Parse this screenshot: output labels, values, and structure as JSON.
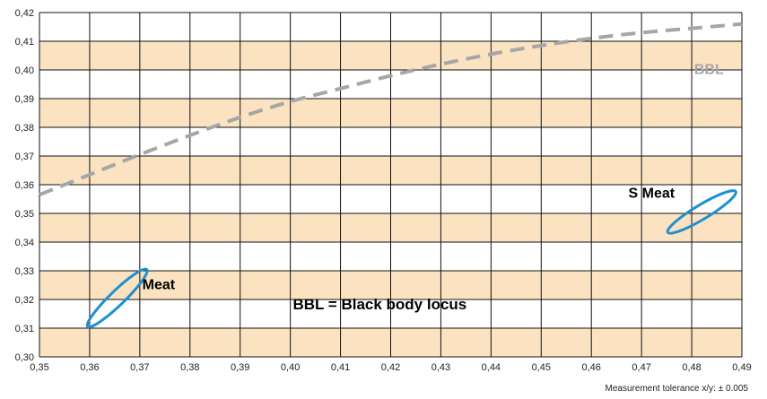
{
  "chart_data": {
    "type": "scatter",
    "xlim": [
      0.35,
      0.49
    ],
    "ylim": [
      0.3,
      0.42
    ],
    "x_ticks": [
      "0,35",
      "0,36",
      "0,37",
      "0,38",
      "0,39",
      "0,40",
      "0,41",
      "0,42",
      "0,43",
      "0,44",
      "0,45",
      "0,46",
      "0,47",
      "0,48",
      "0,49"
    ],
    "y_ticks": [
      "0,30",
      "0,31",
      "0,32",
      "0,33",
      "0,34",
      "0,35",
      "0,36",
      "0,37",
      "0,38",
      "0,39",
      "0,40",
      "0,41",
      "0,42"
    ],
    "grid": true,
    "band_color": "#fbe3c2",
    "grid_color": "#111111",
    "bbl_curve": {
      "label": "BBL",
      "color": "#a6a6a6",
      "style": "dashed",
      "points": [
        [
          0.35,
          0.3565
        ],
        [
          0.36,
          0.3635
        ],
        [
          0.37,
          0.3705
        ],
        [
          0.38,
          0.3772
        ],
        [
          0.39,
          0.3835
        ],
        [
          0.4,
          0.389
        ],
        [
          0.41,
          0.3935
        ],
        [
          0.42,
          0.398
        ],
        [
          0.43,
          0.402
        ],
        [
          0.44,
          0.4055
        ],
        [
          0.45,
          0.4085
        ],
        [
          0.46,
          0.411
        ],
        [
          0.47,
          0.413
        ],
        [
          0.48,
          0.4145
        ],
        [
          0.49,
          0.416
        ]
      ]
    },
    "ellipses": [
      {
        "label": "Meat",
        "color": "#1f8fcf",
        "cx": 0.3655,
        "cy": 0.3205,
        "rx": 0.0082,
        "ry": 0.0025,
        "angle_deg": -44
      },
      {
        "label": "S Meat",
        "color": "#1f8fcf",
        "cx": 0.482,
        "cy": 0.3505,
        "rx": 0.0079,
        "ry": 0.0025,
        "angle_deg": -31
      }
    ],
    "annotation": "BBL = Black body locus"
  },
  "footnote": "Measurement tolerance x/y: ± 0.005"
}
